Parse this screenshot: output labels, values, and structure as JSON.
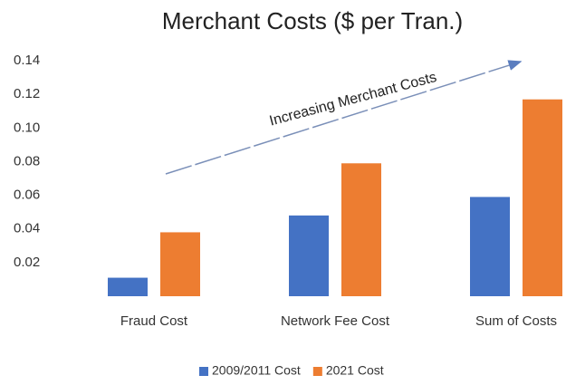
{
  "chart_data": {
    "type": "bar",
    "title": "Merchant Costs ($ per Tran.)",
    "categories": [
      "Fraud Cost",
      "Network Fee Cost",
      "Sum of Costs"
    ],
    "series": [
      {
        "name": "2009/2011 Cost",
        "color": "#4472c4",
        "values": [
          0.011,
          0.048,
          0.059
        ]
      },
      {
        "name": "2021 Cost",
        "color": "#ed7d31",
        "values": [
          0.038,
          0.079,
          0.117
        ]
      }
    ],
    "ylim": [
      0,
      0.14
    ],
    "yticks": [
      0.02,
      0.04,
      0.06,
      0.08,
      {
        "value": 0.1,
        "label": "0.10"
      },
      0.12,
      0.14
    ],
    "grid": false,
    "legend": "bottom",
    "annotation": "Increasing Merchant Costs"
  }
}
